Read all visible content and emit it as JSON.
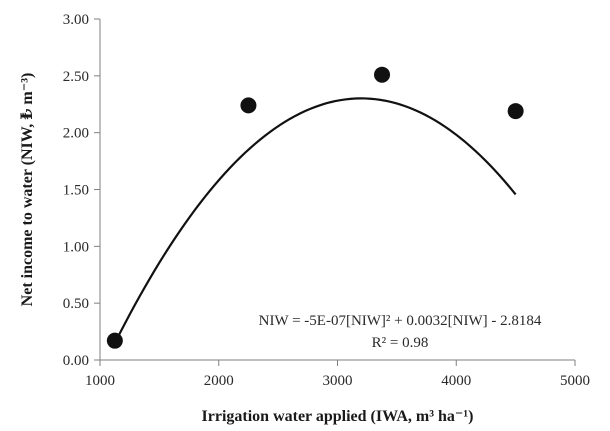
{
  "chart_data": {
    "type": "scatter",
    "title": "",
    "xlabel": "Irrigation water applied (IWA, m³ ha⁻¹)",
    "ylabel": "Net income to water (NIW, ₺ m⁻³)",
    "xlim": [
      1000,
      5000
    ],
    "ylim": [
      0.0,
      3.0
    ],
    "x_ticks": [
      1000,
      2000,
      3000,
      4000,
      5000
    ],
    "y_ticks": [
      0.0,
      0.5,
      1.0,
      1.5,
      2.0,
      2.5,
      3.0
    ],
    "x_tick_labels": [
      "1000",
      "2000",
      "3000",
      "4000",
      "5000"
    ],
    "y_tick_labels": [
      "0.00",
      "0.50",
      "1.00",
      "1.50",
      "2.00",
      "2.50",
      "3.00"
    ],
    "grid": false,
    "legend": "none",
    "series": [
      {
        "points": [
          {
            "x": 1125,
            "y": 0.17
          },
          {
            "x": 2250,
            "y": 2.24
          },
          {
            "x": 3375,
            "y": 2.51
          },
          {
            "x": 4500,
            "y": 2.19
          }
        ]
      }
    ],
    "trendline": {
      "type": "polynomial-2",
      "coefficients": {
        "a": -5e-07,
        "b": 0.0032,
        "c": -2.8184
      }
    },
    "annotations": {
      "equation": "NIW = -5E-07[NIW]² + 0.0032[NIW] - 2.8184",
      "r_squared": "R² = 0.98"
    },
    "colors": {
      "marker": "#111111",
      "line": "#111111",
      "axis": "#7f7f7f",
      "text": "#2a2a2a"
    }
  }
}
